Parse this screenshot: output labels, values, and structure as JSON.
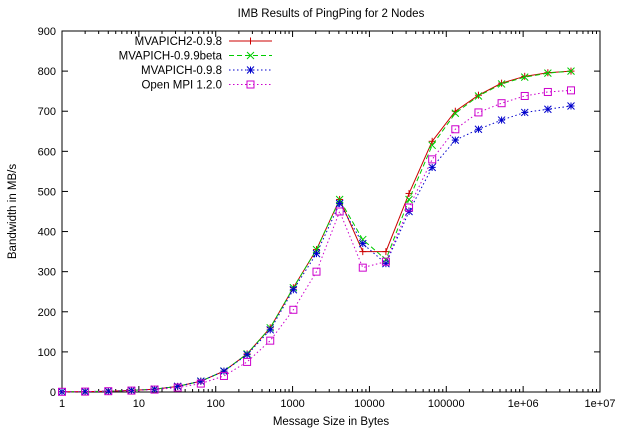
{
  "chart_data": {
    "type": "line",
    "title": "IMB Results of PingPing for 2 Nodes",
    "xlabel": "Message Size in Bytes",
    "ylabel": "Bandwidth in MB/s",
    "x_scale": "log",
    "xlim": [
      1,
      10000000
    ],
    "ylim": [
      0,
      900
    ],
    "grid": false,
    "legend_position": "top-left",
    "x_ticks": [
      1,
      10,
      100,
      1000,
      10000,
      100000,
      1000000,
      10000000
    ],
    "x_tick_labels": [
      "1",
      "10",
      "100",
      "1000",
      "10000",
      "100000",
      "1e+06",
      "1e+07"
    ],
    "y_ticks": [
      0,
      100,
      200,
      300,
      400,
      500,
      600,
      700,
      800,
      900
    ],
    "y_tick_labels": [
      "0",
      "100",
      "200",
      "300",
      "400",
      "500",
      "600",
      "700",
      "800",
      "900"
    ],
    "x": [
      1,
      2,
      4,
      8,
      16,
      32,
      64,
      128,
      256,
      512,
      1024,
      2048,
      4096,
      8192,
      16384,
      32768,
      65536,
      131072,
      262144,
      524288,
      1048576,
      2097152,
      4194304
    ],
    "series": [
      {
        "name": "MVAPICH2-0.9.8",
        "color": "#cc0000",
        "marker": "plus",
        "dash": "solid",
        "values": [
          0.5,
          1,
          2,
          4,
          7,
          14,
          27,
          52,
          95,
          160,
          260,
          355,
          480,
          350,
          350,
          495,
          625,
          700,
          740,
          770,
          787,
          796,
          800
        ]
      },
      {
        "name": "MVAPICH-0.9.9beta",
        "color": "#00cc00",
        "marker": "cross",
        "dash": "dashed",
        "values": [
          0.5,
          1,
          2,
          4,
          7,
          14,
          27,
          52,
          95,
          160,
          260,
          355,
          480,
          380,
          330,
          480,
          615,
          695,
          738,
          768,
          785,
          795,
          800
        ]
      },
      {
        "name": "MVAPICH-0.9.8",
        "color": "#0000cc",
        "marker": "star",
        "dash": "dotted",
        "values": [
          0.5,
          1,
          2,
          4,
          7,
          14,
          27,
          52,
          93,
          155,
          255,
          345,
          470,
          370,
          320,
          450,
          560,
          628,
          655,
          678,
          697,
          705,
          713
        ]
      },
      {
        "name": "Open MPI 1.2.0",
        "color": "#cc00cc",
        "marker": "square",
        "dash": "dotted",
        "values": [
          0.5,
          1,
          2,
          3.5,
          6,
          11,
          21,
          40,
          75,
          128,
          205,
          300,
          450,
          310,
          325,
          460,
          580,
          655,
          697,
          720,
          738,
          748,
          752
        ]
      }
    ]
  }
}
